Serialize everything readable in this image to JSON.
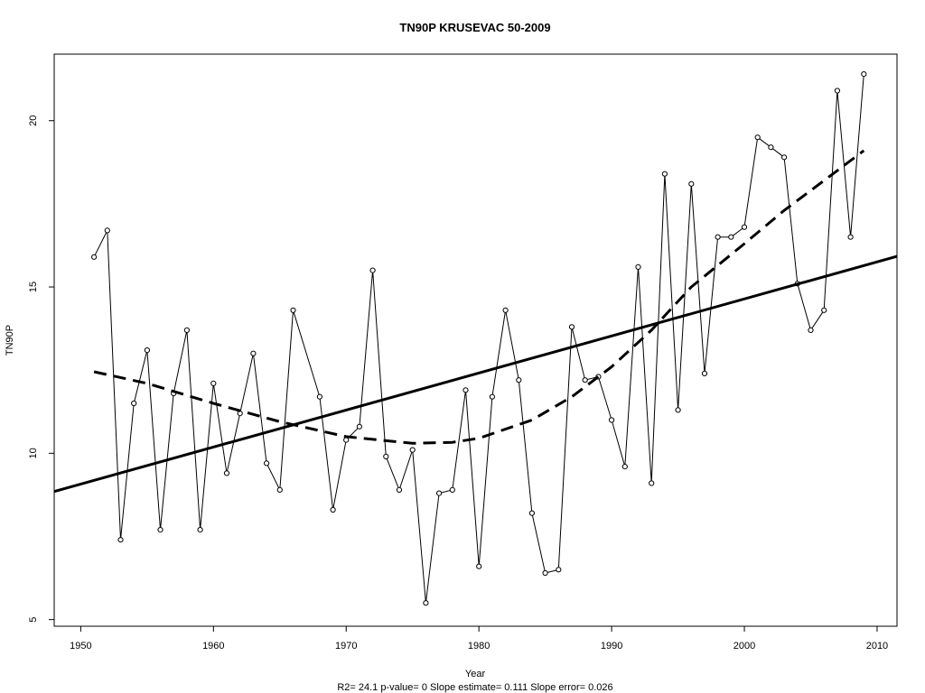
{
  "chart_data": {
    "type": "line",
    "title": "TN90P    KRUSEVAC 50-2009",
    "xlabel": "Year",
    "ylabel": "TN90P",
    "footer": "R2= 24.1  p-value= 0  Slope estimate= 0.111  Slope error= 0.026",
    "xlim": [
      1948,
      2011.5
    ],
    "ylim": [
      4.8,
      22
    ],
    "x_ticks": [
      1950,
      1960,
      1970,
      1980,
      1990,
      2000,
      2010
    ],
    "y_ticks": [
      5,
      10,
      15,
      20
    ],
    "grid": false,
    "series": [
      {
        "style": "line-with-points",
        "points": [
          [
            1951,
            15.9
          ],
          [
            1952,
            16.7
          ],
          [
            1953,
            7.4
          ],
          [
            1954,
            11.5
          ],
          [
            1955,
            13.1
          ],
          [
            1956,
            7.7
          ],
          [
            1957,
            11.8
          ],
          [
            1958,
            13.7
          ],
          [
            1959,
            7.7
          ],
          [
            1960,
            12.1
          ],
          [
            1961,
            9.4
          ],
          [
            1962,
            11.2
          ],
          [
            1963,
            13.0
          ],
          [
            1964,
            9.7
          ],
          [
            1965,
            8.9
          ],
          [
            1966,
            14.3
          ],
          [
            1968,
            11.7
          ],
          [
            1969,
            8.3
          ],
          [
            1970,
            10.4
          ],
          [
            1971,
            10.8
          ],
          [
            1972,
            15.5
          ],
          [
            1973,
            9.9
          ],
          [
            1974,
            8.9
          ],
          [
            1975,
            10.1
          ],
          [
            1976,
            5.5
          ],
          [
            1977,
            8.8
          ],
          [
            1978,
            8.9
          ],
          [
            1979,
            11.9
          ],
          [
            1980,
            6.6
          ],
          [
            1981,
            11.7
          ],
          [
            1982,
            14.3
          ],
          [
            1983,
            12.2
          ],
          [
            1984,
            8.2
          ],
          [
            1985,
            6.4
          ],
          [
            1986,
            6.5
          ],
          [
            1987,
            13.8
          ],
          [
            1988,
            12.2
          ],
          [
            1989,
            12.3
          ],
          [
            1990,
            11.0
          ],
          [
            1991,
            9.6
          ],
          [
            1992,
            15.6
          ],
          [
            1993,
            9.1
          ],
          [
            1994,
            18.4
          ],
          [
            1995,
            11.3
          ],
          [
            1996,
            18.1
          ],
          [
            1997,
            12.4
          ],
          [
            1998,
            16.5
          ],
          [
            1999,
            16.5
          ],
          [
            2000,
            16.8
          ],
          [
            2001,
            19.5
          ],
          [
            2002,
            19.2
          ],
          [
            2003,
            18.9
          ],
          [
            2004,
            15.1
          ],
          [
            2005,
            13.7
          ],
          [
            2006,
            14.3
          ],
          [
            2007,
            20.9
          ],
          [
            2008,
            16.5
          ],
          [
            2009,
            21.4
          ]
        ]
      },
      {
        "style": "linear-trend",
        "points": [
          [
            1948,
            8.85
          ],
          [
            2011.5,
            15.92
          ]
        ]
      },
      {
        "style": "smooth-dashed",
        "points": [
          [
            1951,
            12.45
          ],
          [
            1955,
            12.1
          ],
          [
            1960,
            11.5
          ],
          [
            1965,
            10.95
          ],
          [
            1970,
            10.5
          ],
          [
            1975,
            10.3
          ],
          [
            1978,
            10.33
          ],
          [
            1980,
            10.45
          ],
          [
            1984,
            11.0
          ],
          [
            1987,
            11.7
          ],
          [
            1990,
            12.6
          ],
          [
            1993,
            13.7
          ],
          [
            1996,
            15.0
          ],
          [
            2000,
            16.3
          ],
          [
            2003,
            17.3
          ],
          [
            2006,
            18.2
          ],
          [
            2009,
            19.1
          ]
        ]
      }
    ]
  }
}
